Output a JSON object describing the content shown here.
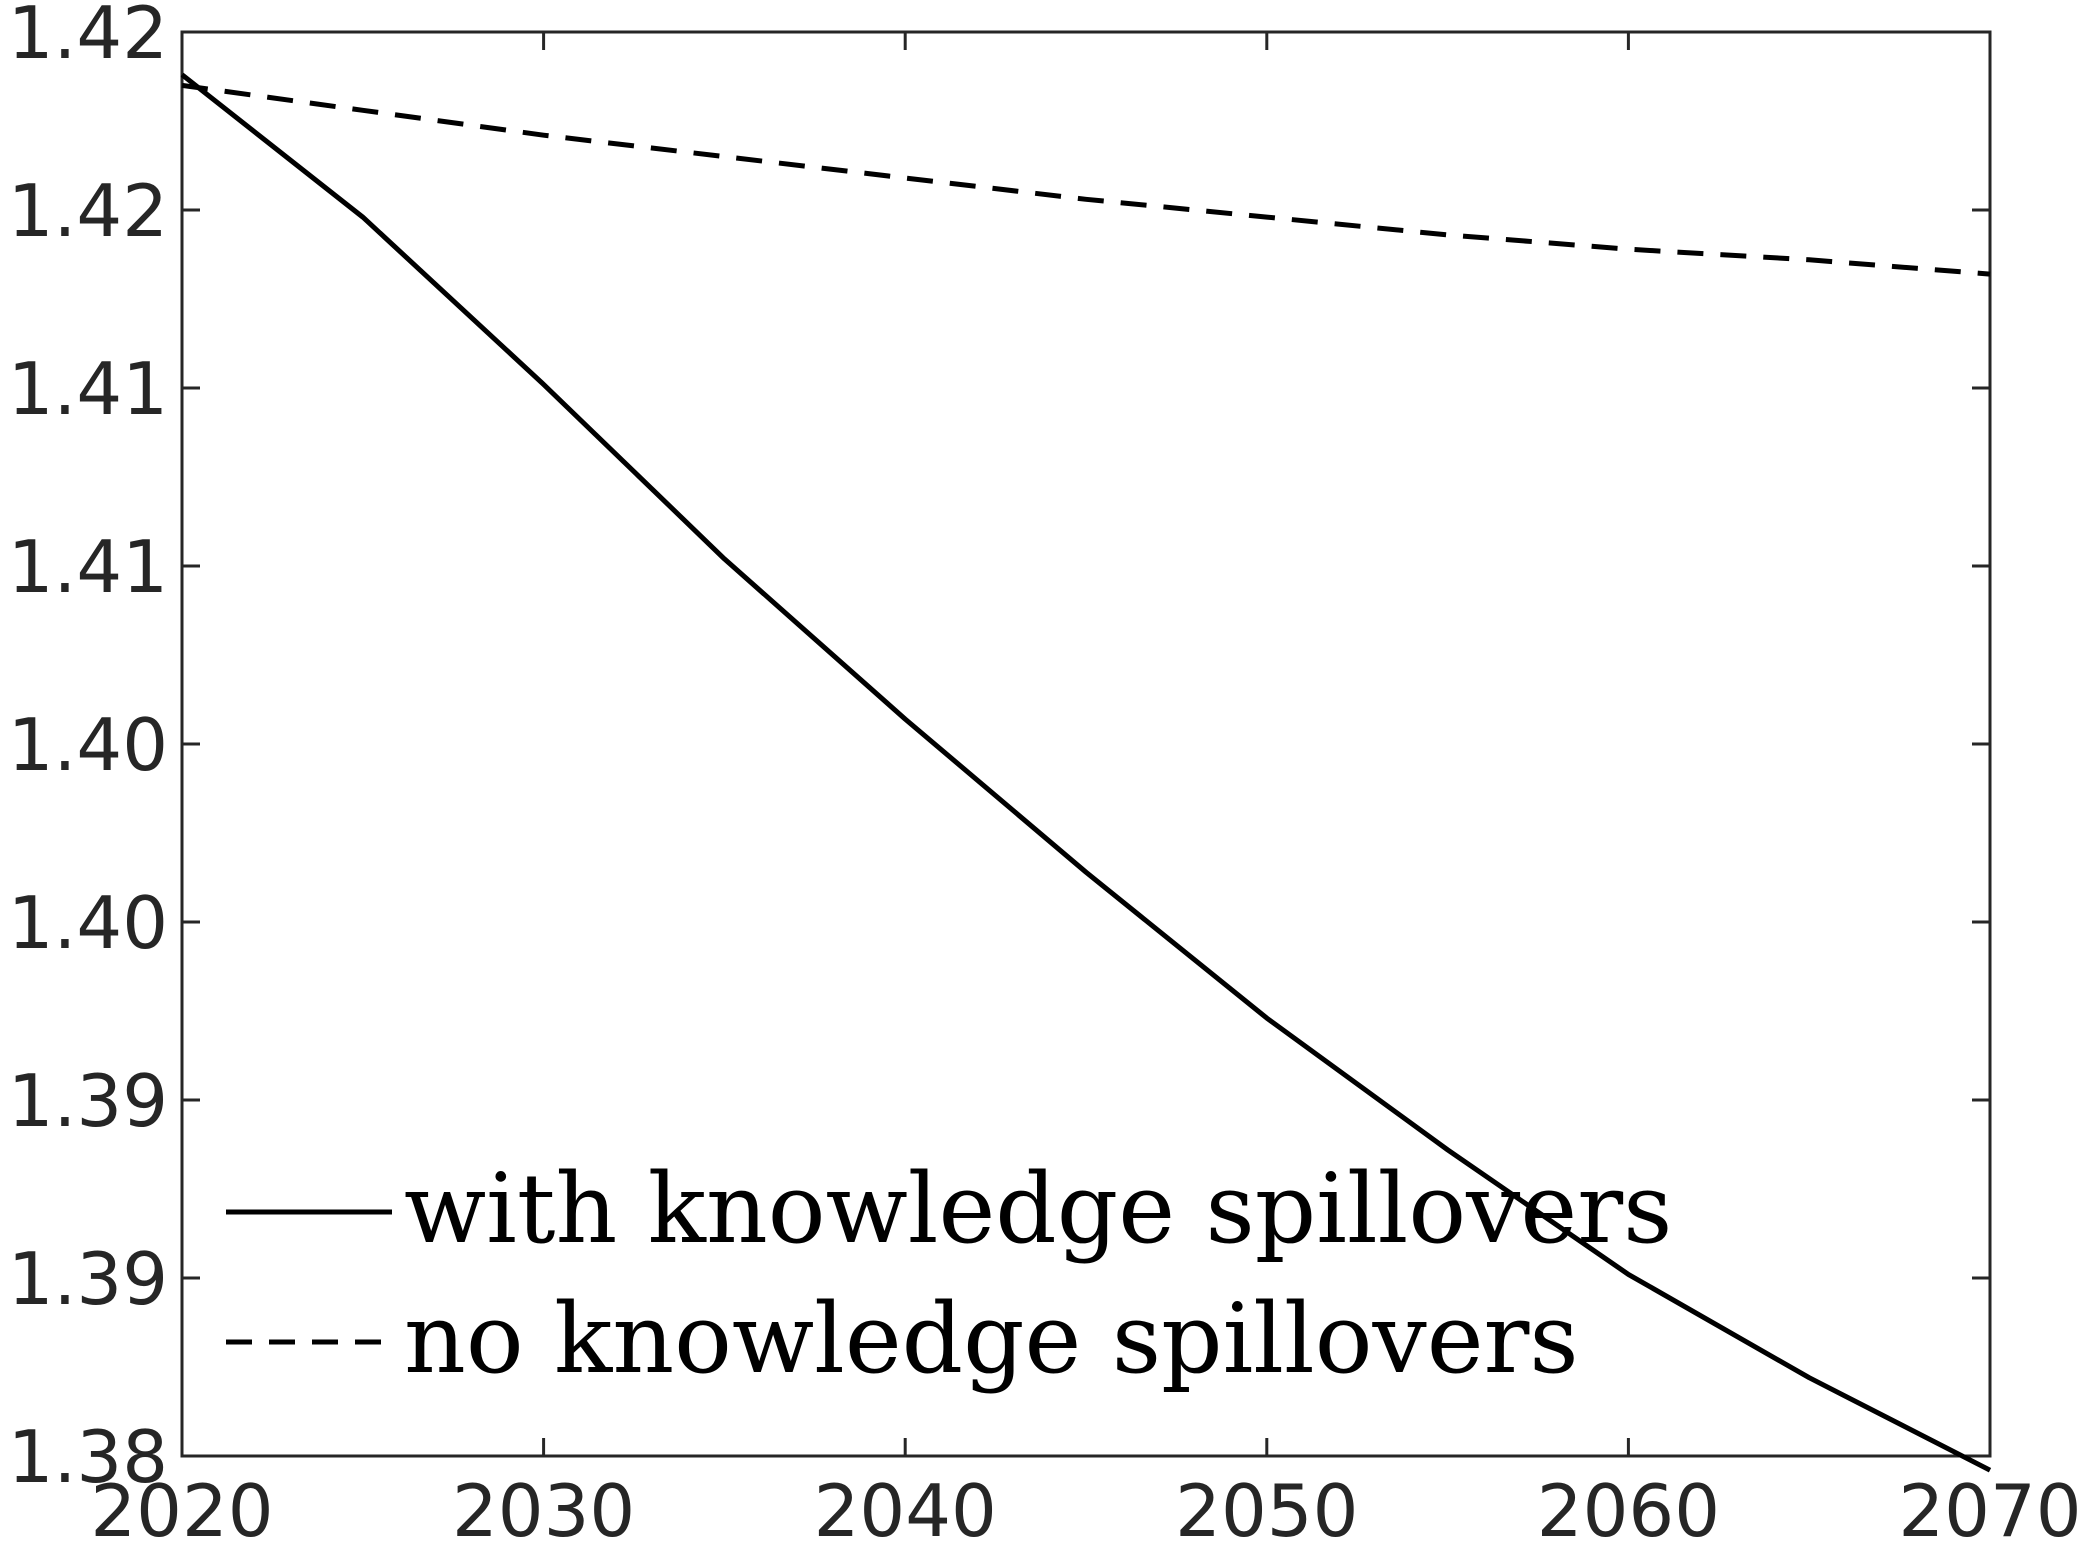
{
  "chart_data": {
    "type": "line",
    "title": "",
    "xlabel": "",
    "ylabel": "",
    "xlim": [
      2020,
      2070
    ],
    "ylim": [
      1.38,
      1.42
    ],
    "x_ticks": [
      2020,
      2030,
      2040,
      2050,
      2060,
      2070
    ],
    "x_tick_labels": [
      "2020",
      "2030",
      "2040",
      "2050",
      "2060",
      "2070"
    ],
    "y_ticks": [
      1.38,
      1.385,
      1.39,
      1.395,
      1.4,
      1.405,
      1.41,
      1.415,
      1.42
    ],
    "y_tick_labels": [
      "1.38",
      "1.39",
      "1.39",
      "1.40",
      "1.40",
      "1.41",
      "1.41",
      "1.42",
      "1.42"
    ],
    "grid": false,
    "legend_position": "bottom-left",
    "series": [
      {
        "name": "with knowledge spillovers",
        "style": "solid",
        "color": "#000000",
        "x": [
          2020,
          2025,
          2030,
          2035,
          2040,
          2045,
          2050,
          2055,
          2060,
          2065,
          2070
        ],
        "y": [
          1.4188,
          1.4148,
          1.4101,
          1.4052,
          1.4007,
          1.3964,
          1.3923,
          1.3886,
          1.3851,
          1.3822,
          1.3796
        ]
      },
      {
        "name": "no knowledge spillovers",
        "style": "dashed",
        "color": "#000000",
        "x": [
          2020,
          2025,
          2030,
          2035,
          2040,
          2045,
          2050,
          2055,
          2060,
          2065,
          2070
        ],
        "y": [
          1.4185,
          1.4178,
          1.4171,
          1.4165,
          1.4159,
          1.4153,
          1.4148,
          1.4143,
          1.4139,
          1.4136,
          1.4132
        ]
      }
    ]
  }
}
